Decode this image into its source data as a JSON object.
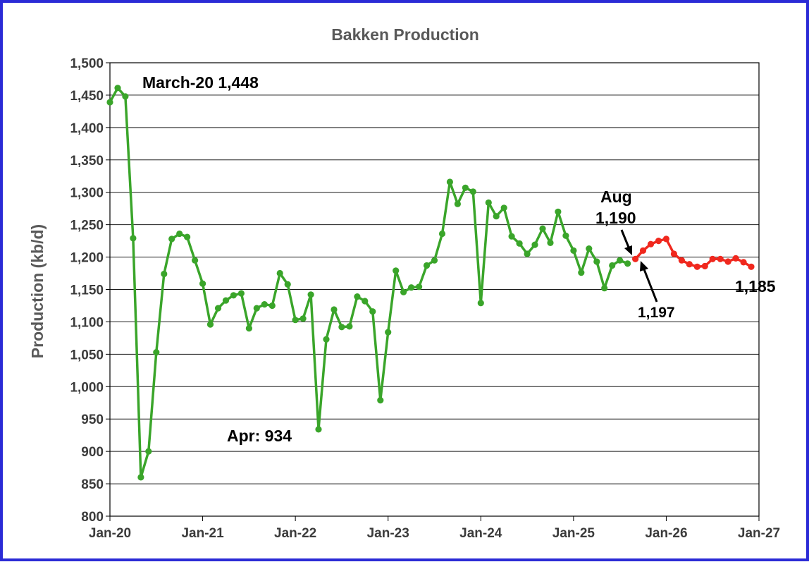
{
  "chart_data": {
    "type": "line",
    "title": "Bakken Production",
    "xlabel": "",
    "ylabel": "Production (kb/d)",
    "ylim": [
      800,
      1500
    ],
    "y_ticks": [
      "800",
      "850",
      "900",
      "950",
      "1,000",
      "1,050",
      "1,100",
      "1,150",
      "1,200",
      "1,250",
      "1,300",
      "1,350",
      "1,400",
      "1,450",
      "1,500"
    ],
    "x_ticks": [
      "Jan-20",
      "Jan-21",
      "Jan-22",
      "Jan-23",
      "Jan-24",
      "Jan-25",
      "Jan-26",
      "Jan-27"
    ],
    "grid": "horizontal",
    "series": [
      {
        "color": "#3aa52a",
        "start": "2020-01",
        "values": [
          1439,
          1461,
          1448,
          1229,
          860,
          900,
          1053,
          1174,
          1228,
          1236,
          1231,
          1195,
          1159,
          1096,
          1121,
          1133,
          1141,
          1144,
          1090,
          1121,
          1127,
          1125,
          1175,
          1158,
          1103,
          1105,
          1142,
          934,
          1073,
          1119,
          1092,
          1093,
          1139,
          1132,
          1116,
          979,
          1084,
          1179,
          1146,
          1153,
          1154,
          1187,
          1195,
          1236,
          1316,
          1282,
          1307,
          1301,
          1129,
          1284,
          1263,
          1276,
          1232,
          1221,
          1205,
          1219,
          1244,
          1222,
          1270,
          1233,
          1210,
          1176,
          1213,
          1193,
          1152,
          1187,
          1195,
          1190
        ]
      },
      {
        "color": "#f0281e",
        "start": "2025-09",
        "values": [
          1197,
          1210,
          1220,
          1225,
          1228,
          1205,
          1195,
          1189,
          1185,
          1186,
          1197,
          1197,
          1193,
          1198,
          1192,
          1185
        ]
      }
    ],
    "annotations": {
      "march": "March-20 1,448",
      "april": "Apr: 934",
      "aug_line1": "Aug",
      "aug_line2": "1,190",
      "sep_value": "1,197",
      "last_value": "1,185"
    }
  }
}
